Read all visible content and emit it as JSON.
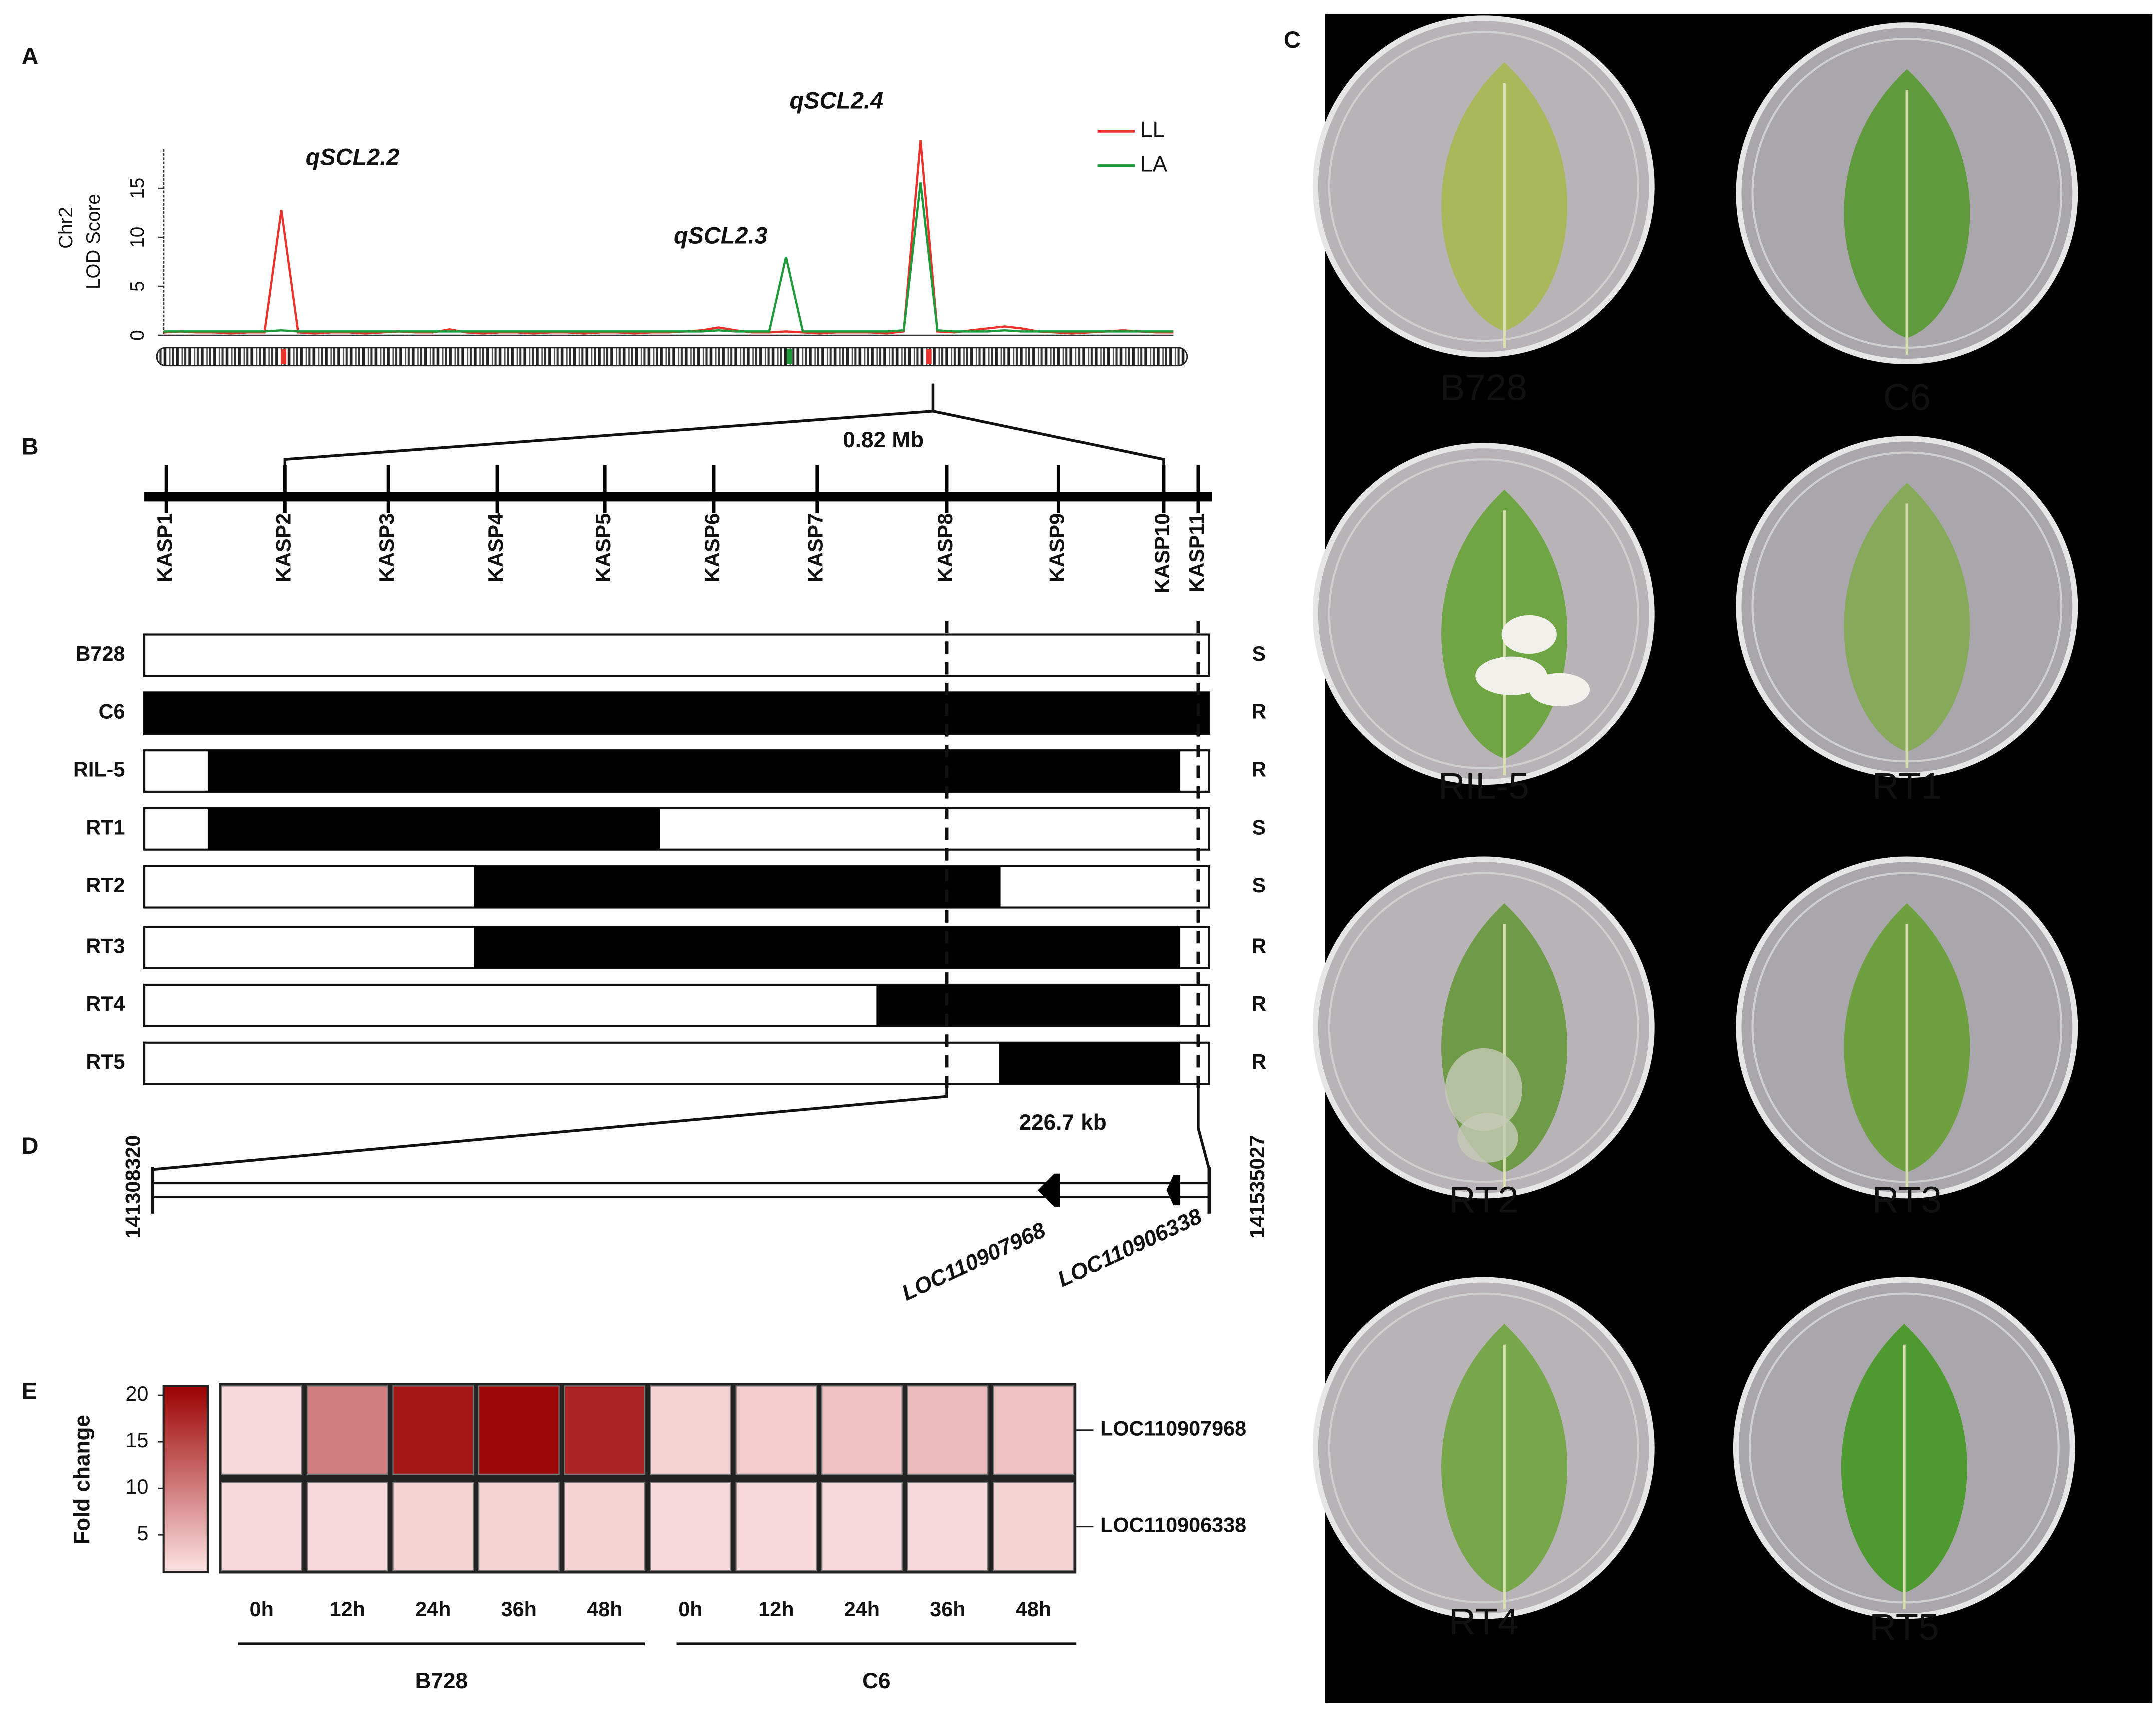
{
  "panel_labels": [
    "A",
    "B",
    "C",
    "D",
    "E"
  ],
  "chart_data": [
    {
      "type": "line",
      "ylabel": [
        "Chr2",
        "LOD Score"
      ],
      "ylim": [
        0,
        19
      ],
      "yticks": [
        0,
        5,
        10,
        15
      ],
      "annotations": [
        "qSCL2.2",
        "qSCL2.3",
        "qSCL2.4"
      ],
      "categories": [
        null,
        null,
        null,
        null,
        null,
        null,
        null,
        null,
        null,
        null,
        null,
        null,
        null,
        null,
        null,
        null,
        null,
        null,
        null,
        null,
        null,
        null,
        null,
        null,
        null,
        null,
        null,
        null,
        null,
        null,
        null,
        null,
        null,
        null,
        null,
        null,
        null,
        null,
        null,
        null,
        null,
        null,
        null,
        null,
        null,
        null,
        null,
        null,
        null,
        null,
        null,
        null,
        null,
        null,
        null,
        null,
        null,
        null,
        null,
        null,
        null
      ],
      "series": [
        {
          "name": "LL",
          "color": "#e8322c",
          "values": [
            0.3,
            0.4,
            0.3,
            0.3,
            0.2,
            0.3,
            0.3,
            12.8,
            0.3,
            0.2,
            0.3,
            0.3,
            0.2,
            0.3,
            0.4,
            0.3,
            0.3,
            0.6,
            0.3,
            0.2,
            0.3,
            0.3,
            0.2,
            0.3,
            0.3,
            0.2,
            0.3,
            0.3,
            0.2,
            0.3,
            0.3,
            0.4,
            0.5,
            0.8,
            0.5,
            0.3,
            0.3,
            0.4,
            0.3,
            0.2,
            0.3,
            0.3,
            0.3,
            0.2,
            0.4,
            19.9,
            0.4,
            0.3,
            0.5,
            0.7,
            0.9,
            0.7,
            0.4,
            0.3,
            0.2,
            0.3,
            0.4,
            0.5,
            0.4,
            0.3,
            0.3
          ]
        },
        {
          "name": "LA",
          "color": "#1f9a3a",
          "values": [
            0.4,
            0.4,
            0.4,
            0.4,
            0.4,
            0.4,
            0.4,
            0.5,
            0.4,
            0.4,
            0.4,
            0.4,
            0.4,
            0.4,
            0.4,
            0.4,
            0.4,
            0.4,
            0.4,
            0.4,
            0.4,
            0.4,
            0.4,
            0.4,
            0.4,
            0.4,
            0.4,
            0.4,
            0.4,
            0.4,
            0.4,
            0.4,
            0.4,
            0.5,
            0.4,
            0.4,
            0.4,
            8.0,
            0.4,
            0.4,
            0.4,
            0.4,
            0.4,
            0.4,
            0.5,
            15.6,
            0.5,
            0.4,
            0.4,
            0.4,
            0.5,
            0.4,
            0.4,
            0.4,
            0.4,
            0.4,
            0.4,
            0.4,
            0.4,
            0.4,
            0.4
          ]
        }
      ]
    },
    {
      "type": "heatmap",
      "colorbar_label": "Fold change",
      "clim": [
        1,
        21
      ],
      "cticks": [
        5,
        10,
        15,
        20
      ],
      "colors": [
        "#fde4e4",
        "#9b0000"
      ],
      "rows": [
        "LOC110907968",
        "LOC110906338"
      ],
      "columns": [
        "0h",
        "12h",
        "24h",
        "36h",
        "48h",
        "0h",
        "12h",
        "24h",
        "36h",
        "48h"
      ],
      "groups": [
        "B728",
        "C6"
      ],
      "values": [
        [
          2,
          10,
          19,
          20.5,
          18,
          2.5,
          3,
          4,
          4.5,
          4
        ],
        [
          2,
          2,
          2.5,
          2.5,
          2.5,
          2,
          2,
          2,
          2,
          2.5
        ]
      ]
    }
  ],
  "markers": {
    "interval": "0.82 Mb",
    "names": [
      "KASP1",
      "KASP2",
      "KASP3",
      "KASP4",
      "KASP5",
      "KASP6",
      "KASP7",
      "KASP8",
      "KASP9",
      "KASP10",
      "KASP11"
    ]
  },
  "genotypes": [
    {
      "line": "B728",
      "phenotype": "S"
    },
    {
      "line": "C6",
      "phenotype": "R"
    },
    {
      "line": "RIL-5",
      "phenotype": "R"
    },
    {
      "line": "RT1",
      "phenotype": "S"
    },
    {
      "line": "RT2",
      "phenotype": "S"
    },
    {
      "line": "RT3",
      "phenotype": "R"
    },
    {
      "line": "RT4",
      "phenotype": "R"
    },
    {
      "line": "RT5",
      "phenotype": "R"
    }
  ],
  "region": {
    "size": "226.7 kb",
    "start": 141308320,
    "end": 141535027,
    "genes": [
      "LOC110907968",
      "LOC110906338"
    ]
  },
  "photos": [
    "B728",
    "C6",
    "RIL-5",
    "RT1",
    "RT2",
    "RT3",
    "RT4",
    "RT5"
  ]
}
